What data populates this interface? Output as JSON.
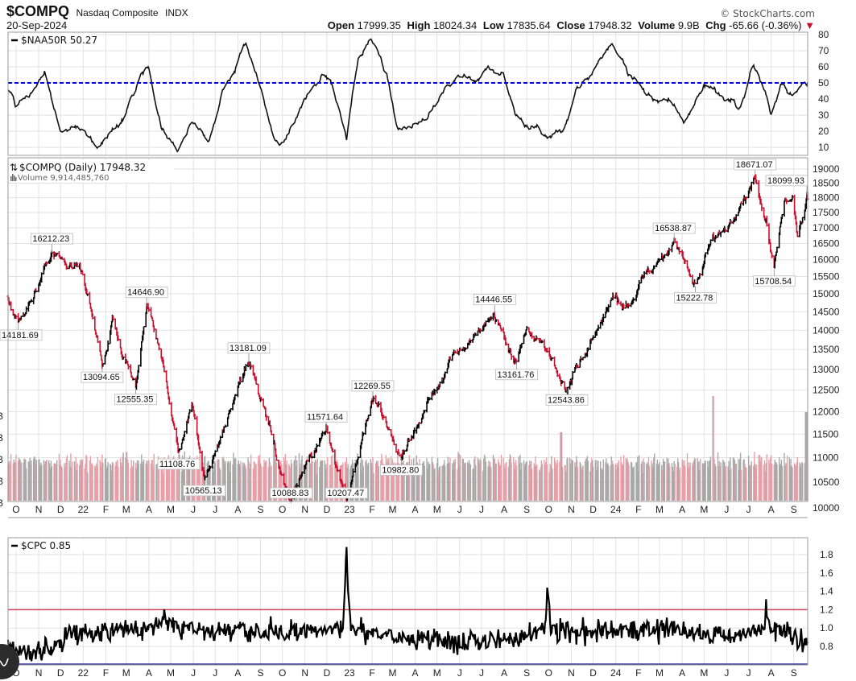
{
  "header": {
    "symbol": "$COMPQ",
    "name": "Nasdaq Composite",
    "exchange": "INDX",
    "date": "20-Sep-2024",
    "copyright": "© StockCharts.com",
    "open_label": "Open",
    "open": "17999.35",
    "high_label": "High",
    "high": "18024.34",
    "low_label": "Low",
    "low": "17835.64",
    "close_label": "Close",
    "close": "17948.32",
    "volume_label": "Volume",
    "volume": "9.9B",
    "chg_label": "Chg",
    "chg": "-65.66 (-0.36%)",
    "chg_arrow": "▼",
    "colors": {
      "down": "#c8102e",
      "up": "#000000"
    }
  },
  "chart_data": [
    {
      "id": "naa50r",
      "type": "line",
      "legend": "$NAA50R 50.27",
      "x_unit": "days since 2021-09-20",
      "ylim": [
        5,
        80
      ],
      "yticks": [
        "80",
        "70",
        "60",
        "50",
        "40",
        "30",
        "20",
        "10"
      ],
      "reference_line": {
        "value": 50,
        "color": "#0000cc",
        "style": "dashed"
      },
      "anchors": [
        [
          0,
          45
        ],
        [
          11,
          35
        ],
        [
          33,
          45
        ],
        [
          50,
          57
        ],
        [
          72,
          20
        ],
        [
          94,
          22
        ],
        [
          121,
          10
        ],
        [
          155,
          25
        ],
        [
          182,
          55
        ],
        [
          193,
          60
        ],
        [
          210,
          22
        ],
        [
          232,
          8
        ],
        [
          254,
          25
        ],
        [
          276,
          15
        ],
        [
          298,
          50
        ],
        [
          326,
          75
        ],
        [
          348,
          45
        ],
        [
          370,
          12
        ],
        [
          386,
          20
        ],
        [
          408,
          40
        ],
        [
          430,
          55
        ],
        [
          442,
          52
        ],
        [
          464,
          15
        ],
        [
          480,
          65
        ],
        [
          497,
          78
        ],
        [
          519,
          55
        ],
        [
          535,
          20
        ],
        [
          563,
          25
        ],
        [
          591,
          40
        ],
        [
          618,
          55
        ],
        [
          640,
          50
        ],
        [
          657,
          60
        ],
        [
          679,
          55
        ],
        [
          695,
          30
        ],
        [
          717,
          22
        ],
        [
          740,
          15
        ],
        [
          762,
          20
        ],
        [
          778,
          45
        ],
        [
          800,
          55
        ],
        [
          828,
          75
        ],
        [
          850,
          55
        ],
        [
          872,
          45
        ],
        [
          905,
          40
        ],
        [
          927,
          25
        ],
        [
          955,
          48
        ],
        [
          982,
          38
        ],
        [
          1004,
          35
        ],
        [
          1021,
          62
        ],
        [
          1038,
          45
        ],
        [
          1046,
          30
        ],
        [
          1060,
          50
        ],
        [
          1076,
          42
        ],
        [
          1096,
          50.27
        ]
      ]
    },
    {
      "id": "compq",
      "type": "ohlc",
      "legend": "$COMPQ (Daily) 17948.32",
      "volume_legend": "Volume 9,914,485,760",
      "scale": "log",
      "ylim": [
        9600,
        19300
      ],
      "yticks": [
        "19000",
        "18500",
        "18000",
        "17500",
        "17000",
        "16500",
        "16000",
        "15500",
        "15000",
        "14500",
        "14000",
        "13500",
        "13000",
        "12500",
        "12000",
        "11500",
        "11000",
        "10500",
        "10000"
      ],
      "volume_axis_labels": [
        "B",
        "B",
        "B",
        "B",
        "B"
      ],
      "anchors": [
        [
          "2021-09-20",
          14900
        ],
        [
          "2021-10-04",
          14181.69
        ],
        [
          "2021-11-19",
          16212.23
        ],
        [
          "2021-12-10",
          15700
        ],
        [
          "2021-12-27",
          15900
        ],
        [
          "2022-01-27",
          13094.65
        ],
        [
          "2022-02-10",
          14300
        ],
        [
          "2022-03-14",
          12555.35
        ],
        [
          "2022-03-29",
          14646.9
        ],
        [
          "2022-05-12",
          11108.76
        ],
        [
          "2022-05-30",
          12200
        ],
        [
          "2022-06-16",
          10565.13
        ],
        [
          "2022-08-16",
          13181.09
        ],
        [
          "2022-09-30",
          10600
        ],
        [
          "2022-10-13",
          10088.83
        ],
        [
          "2022-11-30",
          11571.64
        ],
        [
          "2022-12-28",
          10207.47
        ],
        [
          "2023-02-02",
          12269.55
        ],
        [
          "2023-03-13",
          10982.8
        ],
        [
          "2023-04-15",
          12100
        ],
        [
          "2023-07-19",
          14446.55
        ],
        [
          "2023-08-18",
          13161.76
        ],
        [
          "2023-09-01",
          14000
        ],
        [
          "2023-10-26",
          12543.86
        ],
        [
          "2023-12-31",
          15000
        ],
        [
          "2024-01-10",
          14600
        ],
        [
          "2024-03-21",
          16538.87
        ],
        [
          "2024-04-19",
          15222.78
        ],
        [
          "2024-07-10",
          18671.07
        ],
        [
          "2024-07-25",
          17200
        ],
        [
          "2024-08-05",
          15708.54
        ],
        [
          "2024-08-20",
          17900
        ],
        [
          "2024-08-30",
          18000
        ],
        [
          "2024-09-06",
          16690
        ],
        [
          "2024-09-19",
          18099.93
        ],
        [
          "2024-09-20",
          17948.32
        ]
      ],
      "annotations": [
        {
          "date": "2021-10-04",
          "text": "14181.69",
          "kind": "trough"
        },
        {
          "date": "2021-11-19",
          "text": "16212.23",
          "kind": "peak"
        },
        {
          "date": "2022-01-27",
          "text": "13094.65",
          "kind": "trough"
        },
        {
          "date": "2022-03-14",
          "text": "12555.35",
          "kind": "trough"
        },
        {
          "date": "2022-03-29",
          "text": "14646.90",
          "kind": "peak"
        },
        {
          "date": "2022-05-12",
          "text": "11108.76",
          "kind": "trough"
        },
        {
          "date": "2022-06-16",
          "text": "10565.13",
          "kind": "trough"
        },
        {
          "date": "2022-08-16",
          "text": "13181.09",
          "kind": "peak"
        },
        {
          "date": "2022-10-13",
          "text": "10088.83",
          "kind": "trough"
        },
        {
          "date": "2022-11-30",
          "text": "11571.64",
          "kind": "peak"
        },
        {
          "date": "2022-12-28",
          "text": "10207.47",
          "kind": "trough"
        },
        {
          "date": "2023-02-02",
          "text": "12269.55",
          "kind": "peak"
        },
        {
          "date": "2023-03-13",
          "text": "10982.80",
          "kind": "trough"
        },
        {
          "date": "2023-07-19",
          "text": "14446.55",
          "kind": "peak"
        },
        {
          "date": "2023-08-18",
          "text": "13161.76",
          "kind": "trough"
        },
        {
          "date": "2023-10-26",
          "text": "12543.86",
          "kind": "trough"
        },
        {
          "date": "2024-03-21",
          "text": "16538.87",
          "kind": "peak"
        },
        {
          "date": "2024-04-19",
          "text": "15222.78",
          "kind": "trough"
        },
        {
          "date": "2024-07-10",
          "text": "18671.07",
          "kind": "peak"
        },
        {
          "date": "2024-08-05",
          "text": "15708.54",
          "kind": "trough"
        },
        {
          "date": "2024-09-19",
          "text": "18099.93",
          "kind": "peak"
        }
      ],
      "volume": {
        "typical_billions": 4.8,
        "spikes": [
          [
            364,
            7.5
          ],
          [
            758,
            8.5
          ],
          [
            966,
            13
          ],
          [
            1094,
            11
          ]
        ]
      }
    },
    {
      "id": "cpc",
      "type": "line",
      "legend": "$CPC 0.85",
      "x_unit": "days since 2021-09-20",
      "ylim": [
        0.6,
        1.95
      ],
      "yticks": [
        "1.8",
        "1.6",
        "1.4",
        "1.2",
        "1.0",
        "0.8"
      ],
      "reference_lines": [
        {
          "value": 1.2,
          "color": "#d0405a"
        },
        {
          "value": 0.6,
          "color": "#2a2a9a"
        }
      ],
      "anchors": [
        [
          0,
          0.8
        ],
        [
          30,
          0.72
        ],
        [
          60,
          0.78
        ],
        [
          90,
          0.95
        ],
        [
          200,
          1.0
        ],
        [
          215,
          1.15
        ],
        [
          230,
          1.0
        ],
        [
          300,
          0.95
        ],
        [
          400,
          0.95
        ],
        [
          460,
          1.0
        ],
        [
          462,
          1.6
        ],
        [
          464,
          1.9
        ],
        [
          466,
          1.4
        ],
        [
          470,
          1.0
        ],
        [
          550,
          0.9
        ],
        [
          650,
          0.85
        ],
        [
          700,
          0.9
        ],
        [
          736,
          1.0
        ],
        [
          740,
          1.58
        ],
        [
          744,
          1.0
        ],
        [
          800,
          0.95
        ],
        [
          900,
          1.0
        ],
        [
          1000,
          0.9
        ],
        [
          1036,
          1.0
        ],
        [
          1039,
          1.25
        ],
        [
          1044,
          1.0
        ],
        [
          1096,
          0.85
        ]
      ]
    }
  ],
  "x_axis": {
    "months": [
      {
        "date": "2021-10-01",
        "label": "O"
      },
      {
        "date": "2021-11-01",
        "label": "N"
      },
      {
        "date": "2021-12-01",
        "label": "D"
      },
      {
        "date": "2022-01-01",
        "label": "22"
      },
      {
        "date": "2022-02-01",
        "label": "F"
      },
      {
        "date": "2022-03-01",
        "label": "M"
      },
      {
        "date": "2022-04-01",
        "label": "A"
      },
      {
        "date": "2022-05-01",
        "label": "M"
      },
      {
        "date": "2022-06-01",
        "label": "J"
      },
      {
        "date": "2022-07-01",
        "label": "J"
      },
      {
        "date": "2022-08-01",
        "label": "A"
      },
      {
        "date": "2022-09-01",
        "label": "S"
      },
      {
        "date": "2022-10-01",
        "label": "O"
      },
      {
        "date": "2022-11-01",
        "label": "N"
      },
      {
        "date": "2022-12-01",
        "label": "D"
      },
      {
        "date": "2023-01-01",
        "label": "23"
      },
      {
        "date": "2023-02-01",
        "label": "F"
      },
      {
        "date": "2023-03-01",
        "label": "M"
      },
      {
        "date": "2023-04-01",
        "label": "A"
      },
      {
        "date": "2023-05-01",
        "label": "M"
      },
      {
        "date": "2023-06-01",
        "label": "J"
      },
      {
        "date": "2023-07-01",
        "label": "J"
      },
      {
        "date": "2023-08-01",
        "label": "A"
      },
      {
        "date": "2023-09-01",
        "label": "S"
      },
      {
        "date": "2023-10-01",
        "label": "O"
      },
      {
        "date": "2023-11-01",
        "label": "N"
      },
      {
        "date": "2023-12-01",
        "label": "D"
      },
      {
        "date": "2024-01-01",
        "label": "24"
      },
      {
        "date": "2024-02-01",
        "label": "F"
      },
      {
        "date": "2024-03-01",
        "label": "M"
      },
      {
        "date": "2024-04-01",
        "label": "A"
      },
      {
        "date": "2024-05-01",
        "label": "M"
      },
      {
        "date": "2024-06-01",
        "label": "J"
      },
      {
        "date": "2024-07-01",
        "label": "J"
      },
      {
        "date": "2024-08-01",
        "label": "A"
      },
      {
        "date": "2024-09-01",
        "label": "S"
      }
    ]
  }
}
